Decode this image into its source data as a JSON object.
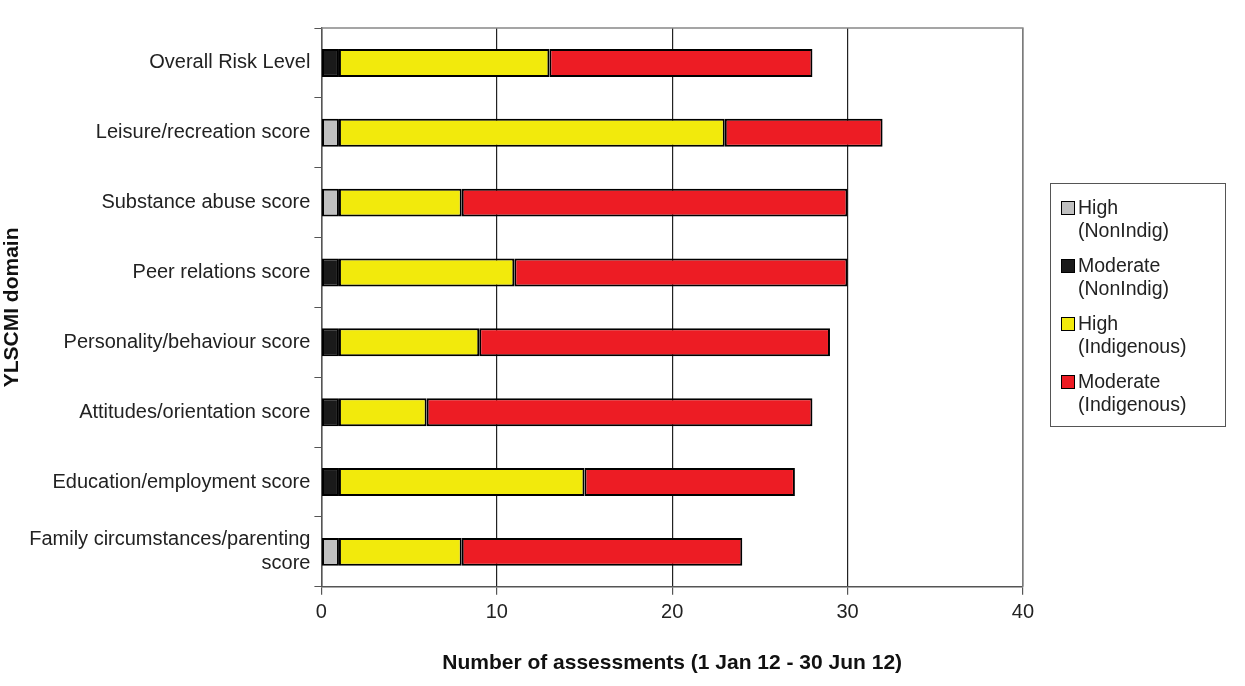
{
  "chart_data": {
    "type": "bar",
    "orientation": "horizontal",
    "stacked": true,
    "xlabel": "Number of assessments (1 Jan 12 - 30 Jun 12)",
    "ylabel": "YLSCMI domain",
    "categories": [
      "Overall Risk Level",
      "Leisure/recreation score",
      "Substance abuse score",
      "Peer relations score",
      "Personality/behaviour score",
      "Attitudes/orientation score",
      "Education/employment score",
      "Family circumstances/parenting score"
    ],
    "series": [
      {
        "name": "High (NonIndig)",
        "color": "#c0c0c0",
        "values": [
          0,
          1,
          1,
          0,
          0,
          0,
          0,
          1
        ]
      },
      {
        "name": "Moderate (NonIndig)",
        "color": "#1a1a1a",
        "values": [
          1,
          0,
          0,
          1,
          1,
          1,
          1,
          0
        ]
      },
      {
        "name": "High (Indigenous)",
        "color": "#f2ea0c",
        "values": [
          12,
          22,
          7,
          10,
          8,
          5,
          14,
          7
        ]
      },
      {
        "name": "Moderate (Indigenous)",
        "color": "#ed1c24",
        "values": [
          15,
          9,
          22,
          19,
          20,
          22,
          12,
          16
        ]
      }
    ],
    "xlim": [
      0,
      40
    ],
    "xticks": [
      0,
      10,
      20,
      30,
      40
    ],
    "grid": "x",
    "legend": "right"
  }
}
